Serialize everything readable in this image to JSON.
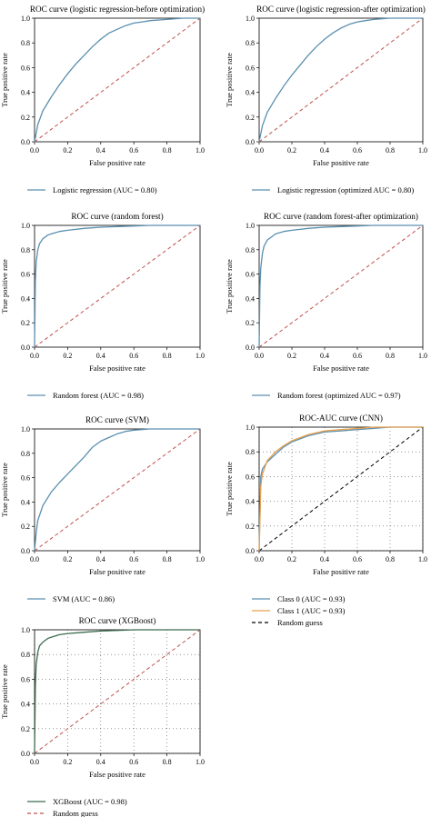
{
  "colors": {
    "roc_blue": "#5b8fb0",
    "roc_orange": "#e8a04c",
    "roc_green": "#3d6b4e",
    "diagonal_red": "#c0504d",
    "diagonal_black": "#000000",
    "axis": "#000000"
  },
  "chart_data": [
    {
      "type": "line",
      "title": "ROC curve (logistic regression-before optimization)",
      "xlabel": "False positive rate",
      "ylabel": "True positive rate",
      "xlim": [
        0,
        1
      ],
      "ylim": [
        0,
        1
      ],
      "x_ticks": [
        "0.0",
        "0.2",
        "0.4",
        "0.6",
        "0.8",
        "1.0"
      ],
      "y_ticks": [
        "0.0",
        "0.2",
        "0.4",
        "0.6",
        "0.8",
        "1.0"
      ],
      "grid": false,
      "legend_position": "below",
      "diagonal": {
        "style": "dashed",
        "color": "#c0504d",
        "label": ""
      },
      "series": [
        {
          "name": "Logistic regression (AUC = 0.80)",
          "color": "#5b8fb0",
          "x": [
            0,
            0.02,
            0.05,
            0.1,
            0.15,
            0.2,
            0.25,
            0.3,
            0.35,
            0.4,
            0.45,
            0.5,
            0.55,
            0.6,
            0.65,
            0.7,
            0.8,
            0.9,
            1.0
          ],
          "y": [
            0,
            0.14,
            0.25,
            0.36,
            0.46,
            0.55,
            0.63,
            0.7,
            0.77,
            0.83,
            0.88,
            0.91,
            0.94,
            0.96,
            0.97,
            0.98,
            0.99,
            1.0,
            1.0
          ]
        }
      ]
    },
    {
      "type": "line",
      "title": "ROC curve (logistic regression-after optimization)",
      "xlabel": "False positive rate",
      "ylabel": "True positive rate",
      "xlim": [
        0,
        1
      ],
      "ylim": [
        0,
        1
      ],
      "x_ticks": [
        "0.0",
        "0.2",
        "0.4",
        "0.6",
        "0.8",
        "1.0"
      ],
      "y_ticks": [
        "0.0",
        "0.2",
        "0.4",
        "0.6",
        "0.8",
        "1.0"
      ],
      "grid": false,
      "legend_position": "below",
      "diagonal": {
        "style": "dashed",
        "color": "#c0504d",
        "label": ""
      },
      "series": [
        {
          "name": "Logistic regression (optimized AUC = 0.80)",
          "color": "#5b8fb0",
          "x": [
            0,
            0.02,
            0.05,
            0.1,
            0.15,
            0.2,
            0.25,
            0.3,
            0.35,
            0.4,
            0.45,
            0.5,
            0.55,
            0.6,
            0.65,
            0.7,
            0.8,
            0.9,
            1.0
          ],
          "y": [
            0,
            0.13,
            0.24,
            0.35,
            0.45,
            0.54,
            0.62,
            0.7,
            0.77,
            0.83,
            0.88,
            0.92,
            0.95,
            0.97,
            0.98,
            0.99,
            1.0,
            1.0,
            1.0
          ]
        }
      ]
    },
    {
      "type": "line",
      "title": "ROC curve (random forest)",
      "xlabel": "False positive rate",
      "ylabel": "True positive rate",
      "xlim": [
        0,
        1
      ],
      "ylim": [
        0,
        1
      ],
      "x_ticks": [
        "0.0",
        "0.2",
        "0.4",
        "0.6",
        "0.8",
        "1.0"
      ],
      "y_ticks": [
        "0.0",
        "0.2",
        "0.4",
        "0.6",
        "0.8",
        "1.0"
      ],
      "grid": false,
      "legend_position": "below",
      "diagonal": {
        "style": "dashed",
        "color": "#c0504d",
        "label": ""
      },
      "series": [
        {
          "name": "Random forest (AUC = 0.98)",
          "color": "#5b8fb0",
          "x": [
            0,
            0.005,
            0.01,
            0.02,
            0.03,
            0.05,
            0.08,
            0.1,
            0.15,
            0.2,
            0.3,
            0.4,
            0.5,
            0.6,
            0.7,
            0.8,
            0.9,
            1.0
          ],
          "y": [
            0,
            0.55,
            0.7,
            0.8,
            0.85,
            0.89,
            0.92,
            0.93,
            0.95,
            0.96,
            0.975,
            0.985,
            0.99,
            0.995,
            1.0,
            1.0,
            1.0,
            1.0
          ]
        }
      ]
    },
    {
      "type": "line",
      "title": "ROC curve (random forest-after optimization)",
      "xlabel": "False positive rate",
      "ylabel": "True positive rate",
      "xlim": [
        0,
        1
      ],
      "ylim": [
        0,
        1
      ],
      "x_ticks": [
        "0.0",
        "0.2",
        "0.4",
        "0.6",
        "0.8",
        "1.0"
      ],
      "y_ticks": [
        "0.0",
        "0.2",
        "0.4",
        "0.6",
        "0.8",
        "1.0"
      ],
      "grid": false,
      "legend_position": "below",
      "diagonal": {
        "style": "dashed",
        "color": "#c0504d",
        "label": ""
      },
      "series": [
        {
          "name": "Random forest (optimized AUC = 0.97)",
          "color": "#5b8fb0",
          "x": [
            0,
            0.005,
            0.01,
            0.02,
            0.03,
            0.05,
            0.08,
            0.1,
            0.15,
            0.2,
            0.3,
            0.4,
            0.5,
            0.6,
            0.7,
            0.8,
            0.9,
            1.0
          ],
          "y": [
            0,
            0.5,
            0.65,
            0.77,
            0.83,
            0.88,
            0.91,
            0.93,
            0.95,
            0.96,
            0.975,
            0.985,
            0.99,
            0.995,
            1.0,
            1.0,
            1.0,
            1.0
          ]
        }
      ]
    },
    {
      "type": "line",
      "title": "ROC curve (SVM)",
      "xlabel": "False positive rate",
      "ylabel": "True positive rate",
      "xlim": [
        0,
        1
      ],
      "ylim": [
        0,
        1
      ],
      "x_ticks": [
        "0.0",
        "0.2",
        "0.4",
        "0.6",
        "0.8",
        "1.0"
      ],
      "y_ticks": [
        "0.0",
        "0.2",
        "0.4",
        "0.6",
        "0.8",
        "1.0"
      ],
      "grid": false,
      "legend_position": "below",
      "diagonal": {
        "style": "dashed",
        "color": "#c0504d",
        "label": ""
      },
      "series": [
        {
          "name": "SVM (AUC = 0.86)",
          "color": "#5b8fb0",
          "x": [
            0,
            0.01,
            0.02,
            0.05,
            0.1,
            0.15,
            0.2,
            0.25,
            0.3,
            0.35,
            0.4,
            0.45,
            0.5,
            0.55,
            0.6,
            0.7,
            0.8,
            0.9,
            1.0
          ],
          "y": [
            0,
            0.15,
            0.25,
            0.37,
            0.48,
            0.56,
            0.63,
            0.7,
            0.77,
            0.85,
            0.9,
            0.93,
            0.96,
            0.98,
            0.99,
            1.0,
            1.0,
            1.0,
            1.0
          ]
        }
      ]
    },
    {
      "type": "line",
      "title": "ROC-AUC curve (CNN)",
      "xlabel": "False positive rate",
      "ylabel": "True positive rate",
      "xlim": [
        0,
        1
      ],
      "ylim": [
        0,
        1
      ],
      "x_ticks": [
        "0.0",
        "0.2",
        "0.4",
        "0.6",
        "0.8",
        "1.0"
      ],
      "y_ticks": [
        "0.0",
        "0.2",
        "0.4",
        "0.6",
        "0.8",
        "1.0"
      ],
      "grid": true,
      "legend_position": "below",
      "diagonal": {
        "style": "dashed",
        "color": "#000000",
        "label": "Random guess"
      },
      "series": [
        {
          "name": "Class 0 (AUC = 0.93)",
          "color": "#5b8fb0",
          "x": [
            0,
            0.01,
            0.02,
            0.05,
            0.1,
            0.15,
            0.2,
            0.3,
            0.4,
            0.5,
            0.6,
            0.7,
            0.8,
            0.9,
            1.0
          ],
          "y": [
            0,
            0.6,
            0.66,
            0.72,
            0.78,
            0.84,
            0.88,
            0.93,
            0.96,
            0.97,
            0.98,
            0.99,
            1.0,
            1.0,
            1.0
          ]
        },
        {
          "name": "Class 1 (AUC = 0.93)",
          "color": "#e8a04c",
          "x": [
            0,
            0.01,
            0.02,
            0.05,
            0.1,
            0.15,
            0.2,
            0.3,
            0.4,
            0.5,
            0.6,
            0.7,
            0.8,
            0.9,
            1.0
          ],
          "y": [
            0,
            0.52,
            0.62,
            0.73,
            0.8,
            0.85,
            0.89,
            0.94,
            0.97,
            0.98,
            0.99,
            1.0,
            1.0,
            1.0,
            1.0
          ]
        }
      ]
    },
    {
      "type": "line",
      "title": "ROC curve (XGBoost)",
      "xlabel": "False positive rate",
      "ylabel": "True positive rate",
      "xlim": [
        0,
        1
      ],
      "ylim": [
        0,
        1
      ],
      "x_ticks": [
        "0.0",
        "0.2",
        "0.4",
        "0.6",
        "0.8",
        "1.0"
      ],
      "y_ticks": [
        "0.0",
        "0.2",
        "0.4",
        "0.6",
        "0.8",
        "1.0"
      ],
      "grid": true,
      "legend_position": "below",
      "diagonal": {
        "style": "dashed",
        "color": "#c0504d",
        "label": "Random guess"
      },
      "series": [
        {
          "name": "XGBoost (AUC = 0.98)",
          "color": "#3d6b4e",
          "x": [
            0,
            0.005,
            0.01,
            0.02,
            0.03,
            0.05,
            0.08,
            0.1,
            0.15,
            0.2,
            0.3,
            0.4,
            0.5,
            0.6,
            0.7,
            0.8,
            0.9,
            1.0
          ],
          "y": [
            0,
            0.55,
            0.72,
            0.82,
            0.87,
            0.9,
            0.93,
            0.94,
            0.96,
            0.97,
            0.98,
            0.99,
            0.995,
            1.0,
            1.0,
            1.0,
            1.0,
            1.0
          ]
        }
      ]
    }
  ]
}
